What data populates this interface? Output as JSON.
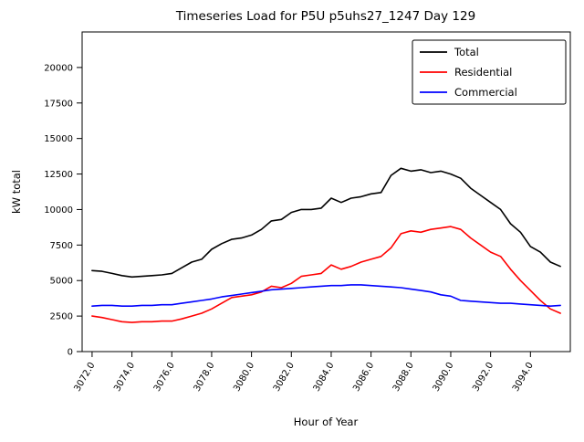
{
  "figure": {
    "title": "Timeseries Load for P5U p5uhs27_1247  Day 129"
  },
  "chart_data": {
    "type": "line",
    "title": "Timeseries Load for P5U p5uhs27_1247  Day 129",
    "xlabel": "Hour of Year",
    "ylabel": "kW total",
    "xlim": [
      3071.5,
      3096.0
    ],
    "ylim": [
      0,
      22500
    ],
    "grid": false,
    "legend_position": "upper right",
    "xticks": [
      3072,
      3074,
      3076,
      3078,
      3080,
      3082,
      3084,
      3086,
      3088,
      3090,
      3092,
      3094
    ],
    "xtick_labels": [
      "3072.0",
      "3074.0",
      "3076.0",
      "3078.0",
      "3080.0",
      "3082.0",
      "3084.0",
      "3086.0",
      "3088.0",
      "3090.0",
      "3092.0",
      "3094.0"
    ],
    "yticks": [
      0,
      2500,
      5000,
      7500,
      10000,
      12500,
      15000,
      17500,
      20000
    ],
    "x": [
      3072.0,
      3072.5,
      3073.0,
      3073.5,
      3074.0,
      3074.5,
      3075.0,
      3075.5,
      3076.0,
      3076.5,
      3077.0,
      3077.5,
      3078.0,
      3078.5,
      3079.0,
      3079.5,
      3080.0,
      3080.5,
      3081.0,
      3081.5,
      3082.0,
      3082.5,
      3083.0,
      3083.5,
      3084.0,
      3084.5,
      3085.0,
      3085.5,
      3086.0,
      3086.5,
      3087.0,
      3087.5,
      3088.0,
      3088.5,
      3089.0,
      3089.5,
      3090.0,
      3090.5,
      3091.0,
      3091.5,
      3092.0,
      3092.5,
      3093.0,
      3093.5,
      3094.0,
      3094.5,
      3095.0,
      3095.5
    ],
    "series": [
      {
        "name": "Total",
        "color": "#000000",
        "values": [
          5700,
          5650,
          5500,
          5350,
          5250,
          5300,
          5350,
          5400,
          5500,
          5900,
          6300,
          6500,
          7200,
          7600,
          7900,
          8000,
          8200,
          8600,
          9200,
          9300,
          9800,
          10000,
          10000,
          10100,
          10800,
          10500,
          10800,
          10900,
          11100,
          11200,
          12400,
          12900,
          12700,
          12800,
          12600,
          12700,
          12500,
          12200,
          11500,
          11000,
          10500,
          10000,
          9000,
          8400,
          7400,
          7000,
          6300,
          6000
        ]
      },
      {
        "name": "Residential",
        "color": "#ff0000",
        "values": [
          2500,
          2400,
          2250,
          2100,
          2050,
          2100,
          2100,
          2150,
          2150,
          2300,
          2500,
          2700,
          3000,
          3400,
          3800,
          3900,
          4000,
          4200,
          4600,
          4500,
          4800,
          5300,
          5400,
          5500,
          6100,
          5800,
          6000,
          6300,
          6500,
          6700,
          7300,
          8300,
          8500,
          8400,
          8600,
          8700,
          8800,
          8600,
          8000,
          7500,
          7000,
          6700,
          5800,
          5000,
          4300,
          3600,
          3000,
          2700
        ]
      },
      {
        "name": "Commercial",
        "color": "#0000ff",
        "values": [
          3200,
          3250,
          3250,
          3200,
          3200,
          3250,
          3250,
          3300,
          3300,
          3400,
          3500,
          3600,
          3700,
          3850,
          3950,
          4050,
          4150,
          4250,
          4350,
          4400,
          4450,
          4500,
          4550,
          4600,
          4650,
          4650,
          4700,
          4700,
          4650,
          4600,
          4550,
          4500,
          4400,
          4300,
          4200,
          4000,
          3900,
          3600,
          3550,
          3500,
          3450,
          3400,
          3400,
          3350,
          3300,
          3250,
          3200,
          3250
        ]
      }
    ]
  }
}
